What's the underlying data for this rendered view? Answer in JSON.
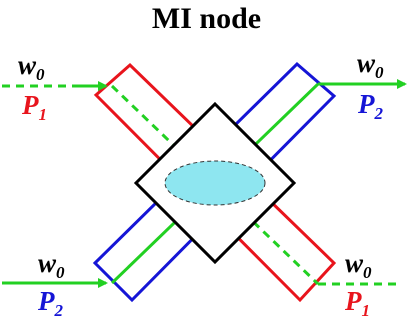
{
  "title": "MI node",
  "labels": {
    "in_top_left_w": "w",
    "in_top_left_w_sub": "0",
    "in_top_left_p": "P",
    "in_top_left_p_sub": "1",
    "out_top_right_w": "w",
    "out_top_right_w_sub": "0",
    "out_top_right_p": "P",
    "out_top_right_p_sub": "2",
    "in_bottom_left_w": "w",
    "in_bottom_left_w_sub": "0",
    "in_bottom_left_p": "P",
    "in_bottom_left_p_sub": "2",
    "out_bottom_right_w": "w",
    "out_bottom_right_w_sub": "0",
    "out_bottom_right_p": "P",
    "out_bottom_right_p_sub": "1"
  },
  "colors": {
    "red": "#e8141c",
    "blue": "#1515d6",
    "green": "#22d022",
    "black": "#000000",
    "ellipse_fill": "#8ee6f0"
  }
}
